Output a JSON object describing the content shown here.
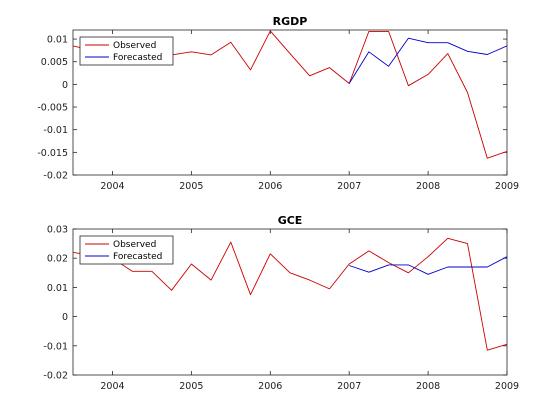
{
  "chart_data": [
    {
      "type": "line",
      "title": "RGDP",
      "xlim": [
        2003.5,
        2009.0
      ],
      "ylim": [
        -0.02,
        0.012
      ],
      "xticks": [
        2004,
        2005,
        2006,
        2007,
        2008,
        2009
      ],
      "xtick_labels": [
        "2004",
        "2005",
        "2006",
        "2007",
        "2008",
        "2009"
      ],
      "yticks": [
        -0.02,
        -0.015,
        -0.01,
        -0.005,
        0,
        0.005,
        0.01
      ],
      "ytick_labels": [
        "-0.02",
        "-0.015",
        "-0.01",
        "-0.005",
        "0",
        "0.005",
        "0.01"
      ],
      "legend_position": "top-left",
      "series": [
        {
          "name": "Observed",
          "color": "#cc0000",
          "x": [
            2003.5,
            2003.75,
            2004.0,
            2004.25,
            2004.5,
            2004.75,
            2005.0,
            2005.25,
            2005.5,
            2005.75,
            2006.0,
            2006.25,
            2006.5,
            2006.75,
            2007.0,
            2007.25,
            2007.5,
            2007.75,
            2008.0,
            2008.25,
            2008.5,
            2008.75,
            2009.0
          ],
          "y": [
            0.0085,
            0.0075,
            0.007,
            0.0075,
            0.006,
            0.0065,
            0.0072,
            0.0065,
            0.0093,
            0.0032,
            0.0118,
            0.0068,
            0.0019,
            0.0037,
            0.0002,
            0.0117,
            0.0117,
            -0.0003,
            0.0022,
            0.0068,
            -0.0018,
            -0.0163,
            -0.0148
          ]
        },
        {
          "name": "Forecasted",
          "color": "#0000cc",
          "x": [
            2007.0,
            2007.25,
            2007.5,
            2007.75,
            2008.0,
            2008.25,
            2008.5,
            2008.75,
            2009.0
          ],
          "y": [
            0.0002,
            0.0072,
            0.004,
            0.0102,
            0.0092,
            0.0092,
            0.0073,
            0.0066,
            0.0085
          ]
        }
      ]
    },
    {
      "type": "line",
      "title": "GCE",
      "xlim": [
        2003.5,
        2009.0
      ],
      "ylim": [
        -0.02,
        0.03
      ],
      "xticks": [
        2004,
        2005,
        2006,
        2007,
        2008,
        2009
      ],
      "xtick_labels": [
        "2004",
        "2005",
        "2006",
        "2007",
        "2008",
        "2009"
      ],
      "yticks": [
        -0.02,
        -0.01,
        0,
        0.01,
        0.02,
        0.03
      ],
      "ytick_labels": [
        "-0.02",
        "-0.01",
        "0",
        "0.01",
        "0.02",
        "0.03"
      ],
      "legend_position": "top-left",
      "series": [
        {
          "name": "Observed",
          "color": "#cc0000",
          "x": [
            2003.5,
            2003.75,
            2004.0,
            2004.25,
            2004.5,
            2004.75,
            2005.0,
            2005.25,
            2005.5,
            2005.75,
            2006.0,
            2006.25,
            2006.5,
            2006.75,
            2007.0,
            2007.25,
            2007.5,
            2007.75,
            2008.0,
            2008.25,
            2008.5,
            2008.75,
            2009.0
          ],
          "y": [
            0.022,
            0.021,
            0.02,
            0.0155,
            0.0155,
            0.009,
            0.018,
            0.0125,
            0.0255,
            0.0075,
            0.0215,
            0.015,
            0.0125,
            0.0095,
            0.018,
            0.0225,
            0.0185,
            0.015,
            0.0205,
            0.0268,
            0.025,
            -0.0115,
            -0.0095
          ]
        },
        {
          "name": "Forecasted",
          "color": "#0000cc",
          "x": [
            2007.0,
            2007.25,
            2007.5,
            2007.75,
            2008.0,
            2008.25,
            2008.5,
            2008.75,
            2009.0
          ],
          "y": [
            0.0175,
            0.0152,
            0.0177,
            0.0177,
            0.0145,
            0.017,
            0.017,
            0.017,
            0.0205
          ]
        }
      ]
    }
  ]
}
